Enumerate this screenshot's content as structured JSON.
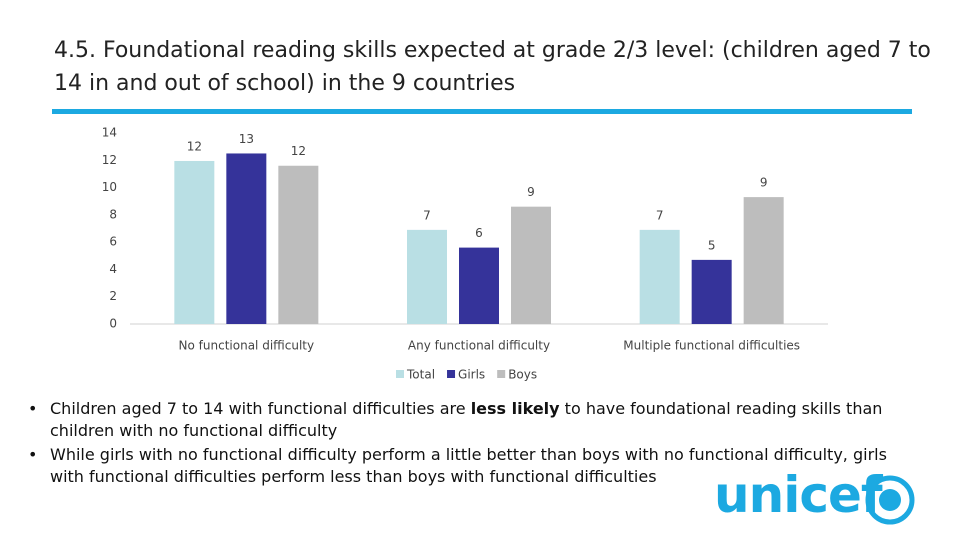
{
  "header": {
    "title": "4.5. Foundational reading skills expected at grade 2/3 level: (children aged 7 to 14 in and out of school) in the 9 countries"
  },
  "chart_data": {
    "type": "bar",
    "categories": [
      "No functional difficulty",
      "Any functional difficulty",
      "Multiple functional difficulties"
    ],
    "series": [
      {
        "name": "Total",
        "color": "#b9dfe4",
        "values": [
          11.95,
          6.9,
          6.9
        ],
        "value_labels": [
          "12",
          "7",
          "7"
        ]
      },
      {
        "name": "Girls",
        "color": "#35339a",
        "values": [
          12.5,
          5.6,
          4.7
        ],
        "value_labels": [
          "13",
          "6",
          "5"
        ]
      },
      {
        "name": "Boys",
        "color": "#bdbdbd",
        "values": [
          11.6,
          8.6,
          9.3
        ],
        "value_labels": [
          "12",
          "9",
          "9"
        ]
      }
    ],
    "ylim": [
      0,
      14
    ],
    "yticks": [
      0,
      2,
      4,
      6,
      8,
      10,
      12,
      14
    ],
    "grid": false,
    "legend": "bottom"
  },
  "bullets": [
    {
      "runs": [
        {
          "text": "Children aged 7 to 14 with functional difficulties are "
        },
        {
          "text": "less likely",
          "bold": true
        },
        {
          "text": " to have foundational reading skills than children with no functional difficulty"
        }
      ]
    },
    {
      "runs": [
        {
          "text": "While girls with no functional difficulty perform a little better than boys with no functional difficulty, girls with functional difficulties perform less than boys with functional difficulties"
        }
      ]
    }
  ],
  "logo": {
    "text": "unicef"
  }
}
